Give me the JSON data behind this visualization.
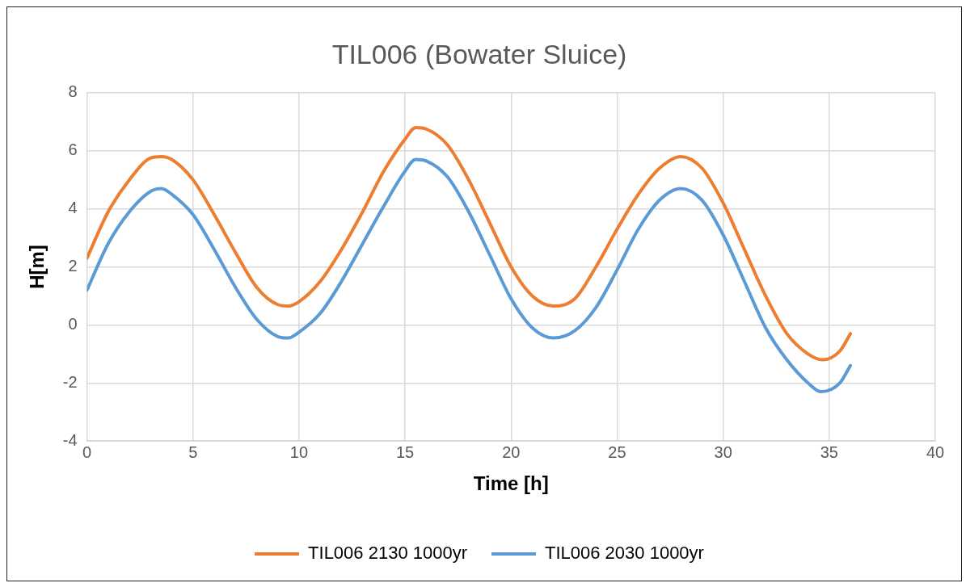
{
  "chart_data": {
    "type": "line",
    "title": "TIL006 (Bowater Sluice)",
    "xlabel": "Time [h]",
    "ylabel": "H[m]",
    "xlim": [
      0,
      40
    ],
    "xticks": [
      0,
      5,
      10,
      15,
      20,
      25,
      30,
      35,
      40
    ],
    "ylim": [
      -4,
      8
    ],
    "yticks": [
      -4,
      -2,
      0,
      2,
      4,
      6,
      8
    ],
    "grid": true,
    "legend": "bottom",
    "marker": "none",
    "series": [
      {
        "name": "TIL006 2130 1000yr",
        "color": "#ed7d31",
        "x": [
          0,
          1,
          2,
          3,
          3.5,
          4,
          5,
          6,
          7,
          8,
          9,
          9.5,
          10,
          11,
          12,
          13,
          14,
          15,
          15.5,
          16,
          17,
          18,
          19,
          20,
          21,
          22,
          23,
          24,
          25,
          26,
          27,
          28,
          29,
          30,
          31,
          32,
          33,
          34,
          34.7,
          35.5,
          36
        ],
        "values": [
          2.3,
          3.9,
          5.0,
          5.75,
          5.8,
          5.7,
          5.0,
          3.8,
          2.5,
          1.3,
          0.7,
          0.65,
          0.8,
          1.5,
          2.6,
          3.9,
          5.3,
          6.4,
          6.8,
          6.75,
          6.2,
          5.0,
          3.5,
          2.0,
          1.0,
          0.65,
          0.9,
          2.0,
          3.3,
          4.5,
          5.4,
          5.8,
          5.4,
          4.2,
          2.6,
          1.0,
          -0.3,
          -1.0,
          -1.2,
          -0.9,
          -0.3
        ]
      },
      {
        "name": "TIL006 2030 1000yr",
        "color": "#5b9bd5",
        "x": [
          0,
          1,
          2,
          3,
          3.5,
          4,
          5,
          6,
          7,
          8,
          9,
          9.5,
          10,
          11,
          12,
          13,
          14,
          15,
          15.5,
          16,
          17,
          18,
          19,
          20,
          21,
          22,
          23,
          24,
          25,
          26,
          27,
          28,
          29,
          30,
          31,
          32,
          33,
          34,
          34.6,
          35.5,
          36
        ],
        "values": [
          1.2,
          2.8,
          3.9,
          4.6,
          4.7,
          4.5,
          3.8,
          2.6,
          1.3,
          0.2,
          -0.4,
          -0.45,
          -0.25,
          0.4,
          1.5,
          2.8,
          4.1,
          5.3,
          5.7,
          5.65,
          5.1,
          3.9,
          2.4,
          0.9,
          -0.1,
          -0.45,
          -0.2,
          0.6,
          1.9,
          3.3,
          4.3,
          4.7,
          4.3,
          3.1,
          1.5,
          -0.1,
          -1.2,
          -2.0,
          -2.3,
          -2.0,
          -1.4
        ]
      }
    ]
  }
}
